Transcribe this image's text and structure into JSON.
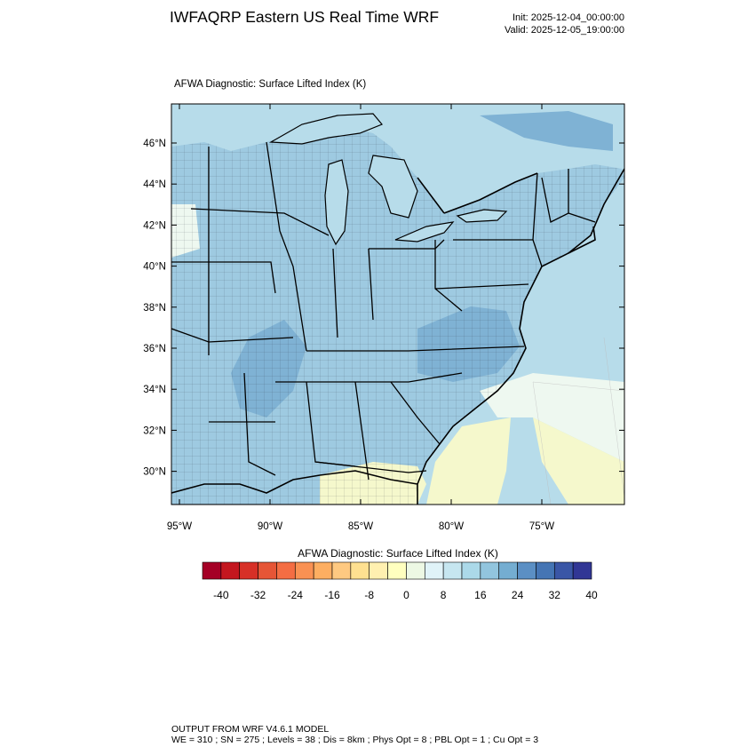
{
  "header": {
    "title": "IWFAQRP Eastern US Real Time WRF",
    "init": "Init: 2025-12-04_00:00:00",
    "valid": "Valid: 2025-12-05_19:00:00"
  },
  "map": {
    "field_title": "AFWA Diagnostic: Surface Lifted Index   (K)",
    "lat_labels": [
      "46°N",
      "44°N",
      "42°N",
      "40°N",
      "38°N",
      "36°N",
      "34°N",
      "32°N",
      "30°N"
    ],
    "lon_labels": [
      "95°W",
      "90°W",
      "85°W",
      "80°W",
      "75°W"
    ],
    "colors": {
      "land_base": "#9ecae1",
      "ocean": "#b7dcea",
      "deep": "#7fb2d4",
      "pale": "#eef8f0",
      "yellow": "#f5f8cc"
    }
  },
  "colorbar": {
    "title": "AFWA Diagnostic: Surface Lifted Index  (K)",
    "tick_labels": [
      "-40",
      "-32",
      "-24",
      "-16",
      "-8",
      "0",
      "8",
      "16",
      "24",
      "32",
      "40"
    ],
    "colors": [
      "#a50026",
      "#c4161f",
      "#d73027",
      "#e65536",
      "#f46d43",
      "#f99153",
      "#fdae61",
      "#fec981",
      "#fee090",
      "#fff0b0",
      "#ffffbf",
      "#edf8e4",
      "#e0f3f8",
      "#c6e6f0",
      "#abd9e9",
      "#92c5de",
      "#74add1",
      "#5b8fc4",
      "#4575b4",
      "#3a56a6",
      "#313695"
    ]
  },
  "footer": {
    "line1": "OUTPUT FROM WRF V4.6.1 MODEL",
    "line2": "WE = 310 ; SN = 275 ; Levels = 38 ; Dis = 8km ; Phys Opt = 8 ; PBL Opt = 1 ; Cu Opt = 3"
  }
}
